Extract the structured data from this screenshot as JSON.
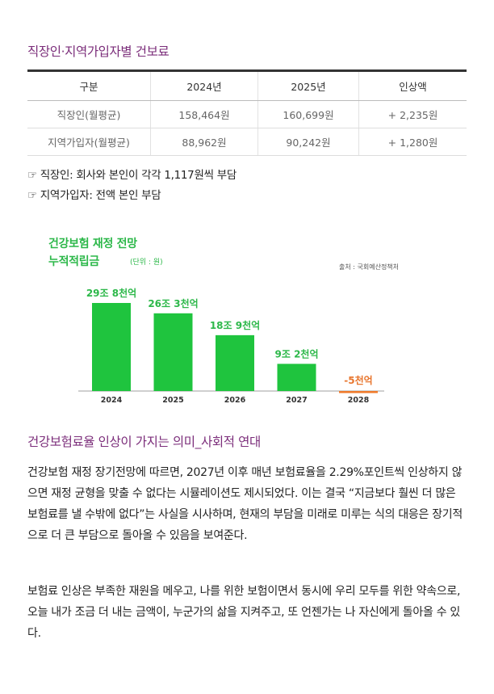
{
  "section1": {
    "title": "직장인·지역가입자별 건보료",
    "table": {
      "headers": [
        "구분",
        "2024년",
        "2025년",
        "인상액"
      ],
      "rows": [
        [
          "직장인(월평균)",
          "158,464원",
          "160,699원",
          "+ 2,235원"
        ],
        [
          "지역가입자(월평균)",
          "88,962원",
          "90,242원",
          "+ 1,280원"
        ]
      ]
    },
    "notes": [
      "☞ 직장인: 회사와 본인이 각각 1,117원씩 부담",
      "☞ 지역가입자: 전액 본인 부담"
    ]
  },
  "chart": {
    "title_line1": "건강보험 재정 전망",
    "title_line2": "누적적립금",
    "unit": "(단위 : 원)",
    "source": "출처 : 국회예산정책처"
  },
  "chart_data": {
    "type": "bar",
    "categories": [
      "2024",
      "2025",
      "2026",
      "2027",
      "2028"
    ],
    "values": [
      29.8,
      26.3,
      18.9,
      9.2,
      -0.5
    ],
    "value_labels": [
      "29조 8천억",
      "26조 3천억",
      "18조 9천억",
      "9조 2천억",
      "-5천억"
    ],
    "title": "건강보험 재정 전망 누적적립금",
    "colors": {
      "positive": "#1fc43e",
      "negative": "#f07a2a",
      "label_positive": "#2db84a",
      "label_negative": "#e8762e"
    }
  },
  "section2": {
    "title": "건강보험료율 인상이 가지는 의미_사회적 연대",
    "paragraph1": " 건강보험 재정 장기전망에 따르면, 2027년 이후 매년 보험료율을 2.29%포인트씩 인상하지 않으면 재정 균형을 맞출 수 없다는 시뮬레이션도 제시되었다. 이는 결국 “지금보다 훨씬 더 많은 보험료를 낼 수밖에 없다”는 사실을 시사하며, 현재의 부담을 미래로 미루는 식의 대응은 장기적으로 더 큰 부담으로 돌아올 수 있음을 보여준다.",
    "paragraph2": "보험료 인상은 부족한 재원을 메우고, 나를 위한 보험이면서 동시에 우리 모두를 위한 약속으로, 오늘 내가 조금 더 내는 금액이, 누군가의 삶을 지켜주고, 또 언젠가는 나 자신에게 돌아올 수 있다."
  }
}
